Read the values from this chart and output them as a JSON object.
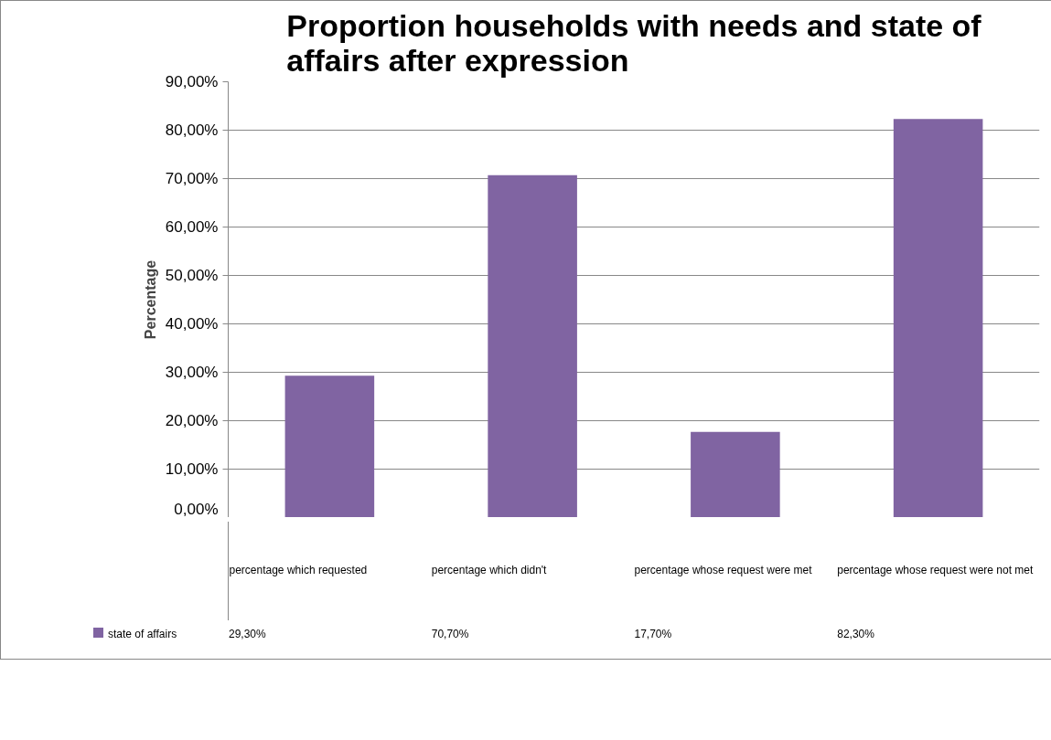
{
  "chart_data": {
    "type": "bar",
    "title": "Proportion households with needs and state of affairs after expression",
    "ylabel": "Percentage",
    "categories": [
      "percentage which requested",
      "percentage which didn't",
      "percentage whose request were met",
      "percentage whose request were not met"
    ],
    "series": [
      {
        "name": "state of affairs",
        "color": "#8064a2",
        "values": [
          29.3,
          70.7,
          17.7,
          82.3
        ],
        "value_labels": [
          "29,30%",
          "70,70%",
          "17,70%",
          "82,30%"
        ]
      }
    ],
    "ylim": [
      0,
      90
    ],
    "yticks": [
      {
        "value": 0,
        "label": "0,00%"
      },
      {
        "value": 10,
        "label": "10,00%"
      },
      {
        "value": 20,
        "label": "20,00%"
      },
      {
        "value": 30,
        "label": "30,00%"
      },
      {
        "value": 40,
        "label": "40,00%"
      },
      {
        "value": 50,
        "label": "50,00%"
      },
      {
        "value": 60,
        "label": "60,00%"
      },
      {
        "value": 70,
        "label": "70,00%"
      },
      {
        "value": 80,
        "label": "80,00%"
      },
      {
        "value": 90,
        "label": "90,00%"
      }
    ],
    "grid": "y",
    "legend": "bottom"
  }
}
